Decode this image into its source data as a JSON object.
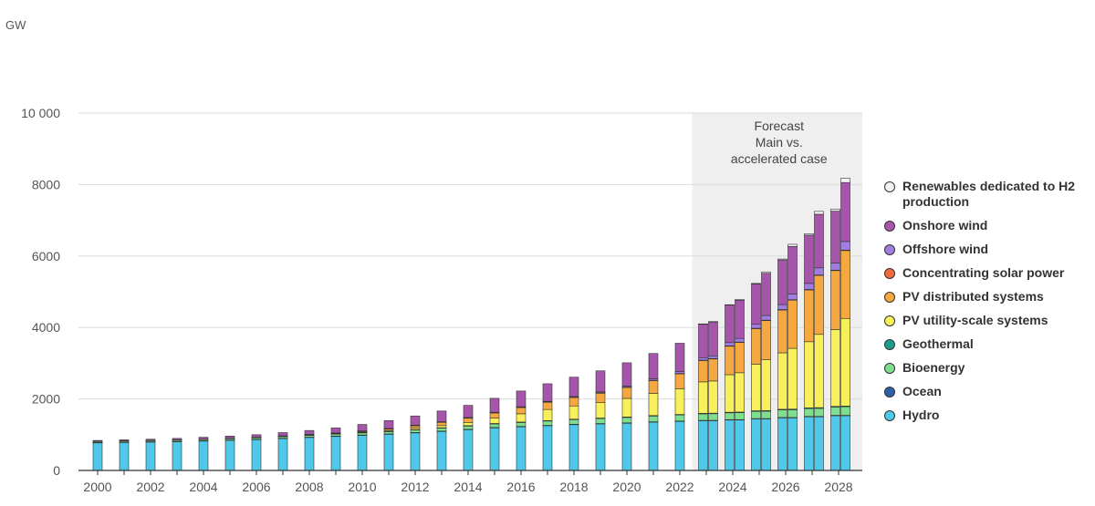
{
  "unit_label": "GW",
  "forecast_label": [
    "Forecast",
    "Main vs.",
    "accelerated case"
  ],
  "chart_data": {
    "type": "bar",
    "stacked": true,
    "ylabel": "GW",
    "ylim": [
      0,
      10000
    ],
    "yticks": [
      0,
      2000,
      4000,
      6000,
      8000,
      10000
    ],
    "ytick_labels": [
      "0",
      "2000",
      "4000",
      "6000",
      "8000",
      "10 000"
    ],
    "xtick_labels": [
      "2000",
      "2002",
      "2004",
      "2006",
      "2008",
      "2010",
      "2012",
      "2014",
      "2016",
      "2018",
      "2020",
      "2022",
      "2024",
      "2026",
      "2028"
    ],
    "grid": "horizontal",
    "legend_position": "right",
    "forecast_region": {
      "from": "2023",
      "to": "2028"
    },
    "categories": [
      "2000",
      "2001",
      "2002",
      "2003",
      "2004",
      "2005",
      "2006",
      "2007",
      "2008",
      "2009",
      "2010",
      "2011",
      "2012",
      "2013",
      "2014",
      "2015",
      "2016",
      "2017",
      "2018",
      "2019",
      "2020",
      "2021",
      "2022",
      "2023 main",
      "2023 accelerated",
      "2024 main",
      "2024 accelerated",
      "2025 main",
      "2025 accelerated",
      "2026 main",
      "2026 accelerated",
      "2027 main",
      "2027 accelerated",
      "2028 main",
      "2028 accelerated"
    ],
    "series": [
      {
        "name": "Hydro",
        "color": "#4fc8ea",
        "values": [
          780,
          790,
          800,
          810,
          830,
          850,
          870,
          900,
          930,
          960,
          990,
          1020,
          1060,
          1100,
          1150,
          1200,
          1230,
          1260,
          1290,
          1310,
          1330,
          1360,
          1380,
          1400,
          1400,
          1420,
          1420,
          1450,
          1450,
          1480,
          1480,
          1510,
          1510,
          1540,
          1540
        ]
      },
      {
        "name": "Ocean",
        "color": "#2f5fa8",
        "values": [
          2,
          2,
          2,
          2,
          2,
          2,
          2,
          2,
          2,
          2,
          2,
          2,
          2,
          2,
          2,
          2,
          2,
          2,
          2,
          2,
          2,
          2,
          2,
          2,
          2,
          2,
          2,
          2,
          2,
          2,
          2,
          2,
          2,
          2,
          2
        ]
      },
      {
        "name": "Bioenergy",
        "color": "#7ee08e",
        "values": [
          30,
          32,
          34,
          36,
          38,
          40,
          42,
          46,
          50,
          55,
          60,
          65,
          70,
          80,
          90,
          100,
          110,
          120,
          130,
          140,
          150,
          160,
          170,
          180,
          185,
          190,
          195,
          200,
          205,
          210,
          215,
          220,
          225,
          230,
          240
        ]
      },
      {
        "name": "Geothermal",
        "color": "#1a9e8a",
        "values": [
          8,
          8,
          8,
          9,
          9,
          9,
          10,
          10,
          10,
          10,
          11,
          11,
          11,
          12,
          12,
          12,
          13,
          13,
          13,
          14,
          14,
          15,
          15,
          16,
          16,
          17,
          17,
          18,
          18,
          19,
          19,
          20,
          20,
          21,
          21
        ]
      },
      {
        "name": "PV utility-scale systems",
        "color": "#f7f05a",
        "values": [
          0,
          0,
          0,
          0,
          0,
          0,
          0,
          0,
          0,
          0,
          10,
          20,
          40,
          60,
          90,
          150,
          230,
          310,
          370,
          430,
          520,
          620,
          720,
          880,
          900,
          1050,
          1100,
          1300,
          1420,
          1580,
          1700,
          1850,
          2050,
          2150,
          2450
        ]
      },
      {
        "name": "PV distributed systems",
        "color": "#f5a740",
        "values": [
          0,
          0,
          0,
          0,
          0,
          0,
          5,
          10,
          15,
          20,
          30,
          50,
          75,
          100,
          125,
          150,
          180,
          210,
          240,
          270,
          310,
          360,
          420,
          600,
          620,
          800,
          850,
          1000,
          1100,
          1200,
          1350,
          1450,
          1650,
          1650,
          1900
        ]
      },
      {
        "name": "Concentrating solar power",
        "color": "#f06a3c",
        "values": [
          0,
          0,
          0,
          0,
          0,
          0,
          0,
          0,
          0,
          1,
          1,
          2,
          2,
          3,
          4,
          4,
          5,
          5,
          5,
          6,
          6,
          6,
          7,
          8,
          8,
          8,
          9,
          9,
          10,
          10,
          11,
          11,
          12,
          12,
          13
        ]
      },
      {
        "name": "Offshore wind",
        "color": "#a27de0",
        "values": [
          0,
          0,
          0,
          0,
          0,
          1,
          1,
          1,
          1,
          2,
          3,
          4,
          5,
          6,
          8,
          10,
          12,
          15,
          20,
          25,
          30,
          40,
          55,
          70,
          75,
          90,
          100,
          110,
          130,
          140,
          160,
          170,
          200,
          200,
          240
        ]
      },
      {
        "name": "Onshore wind",
        "color": "#a556ab",
        "values": [
          20,
          25,
          30,
          40,
          50,
          60,
          70,
          90,
          110,
          140,
          180,
          220,
          260,
          300,
          340,
          390,
          440,
          490,
          540,
          590,
          650,
          710,
          790,
          940,
          950,
          1050,
          1070,
          1130,
          1180,
          1250,
          1330,
          1350,
          1500,
          1450,
          1650
        ]
      },
      {
        "name": "Renewables dedicated to H2 production",
        "color": "#f2f2f2",
        "values": [
          0,
          0,
          0,
          0,
          0,
          0,
          0,
          0,
          0,
          0,
          0,
          0,
          0,
          0,
          0,
          0,
          0,
          0,
          0,
          0,
          0,
          0,
          0,
          5,
          10,
          10,
          20,
          15,
          40,
          25,
          60,
          40,
          80,
          60,
          120
        ]
      }
    ]
  }
}
